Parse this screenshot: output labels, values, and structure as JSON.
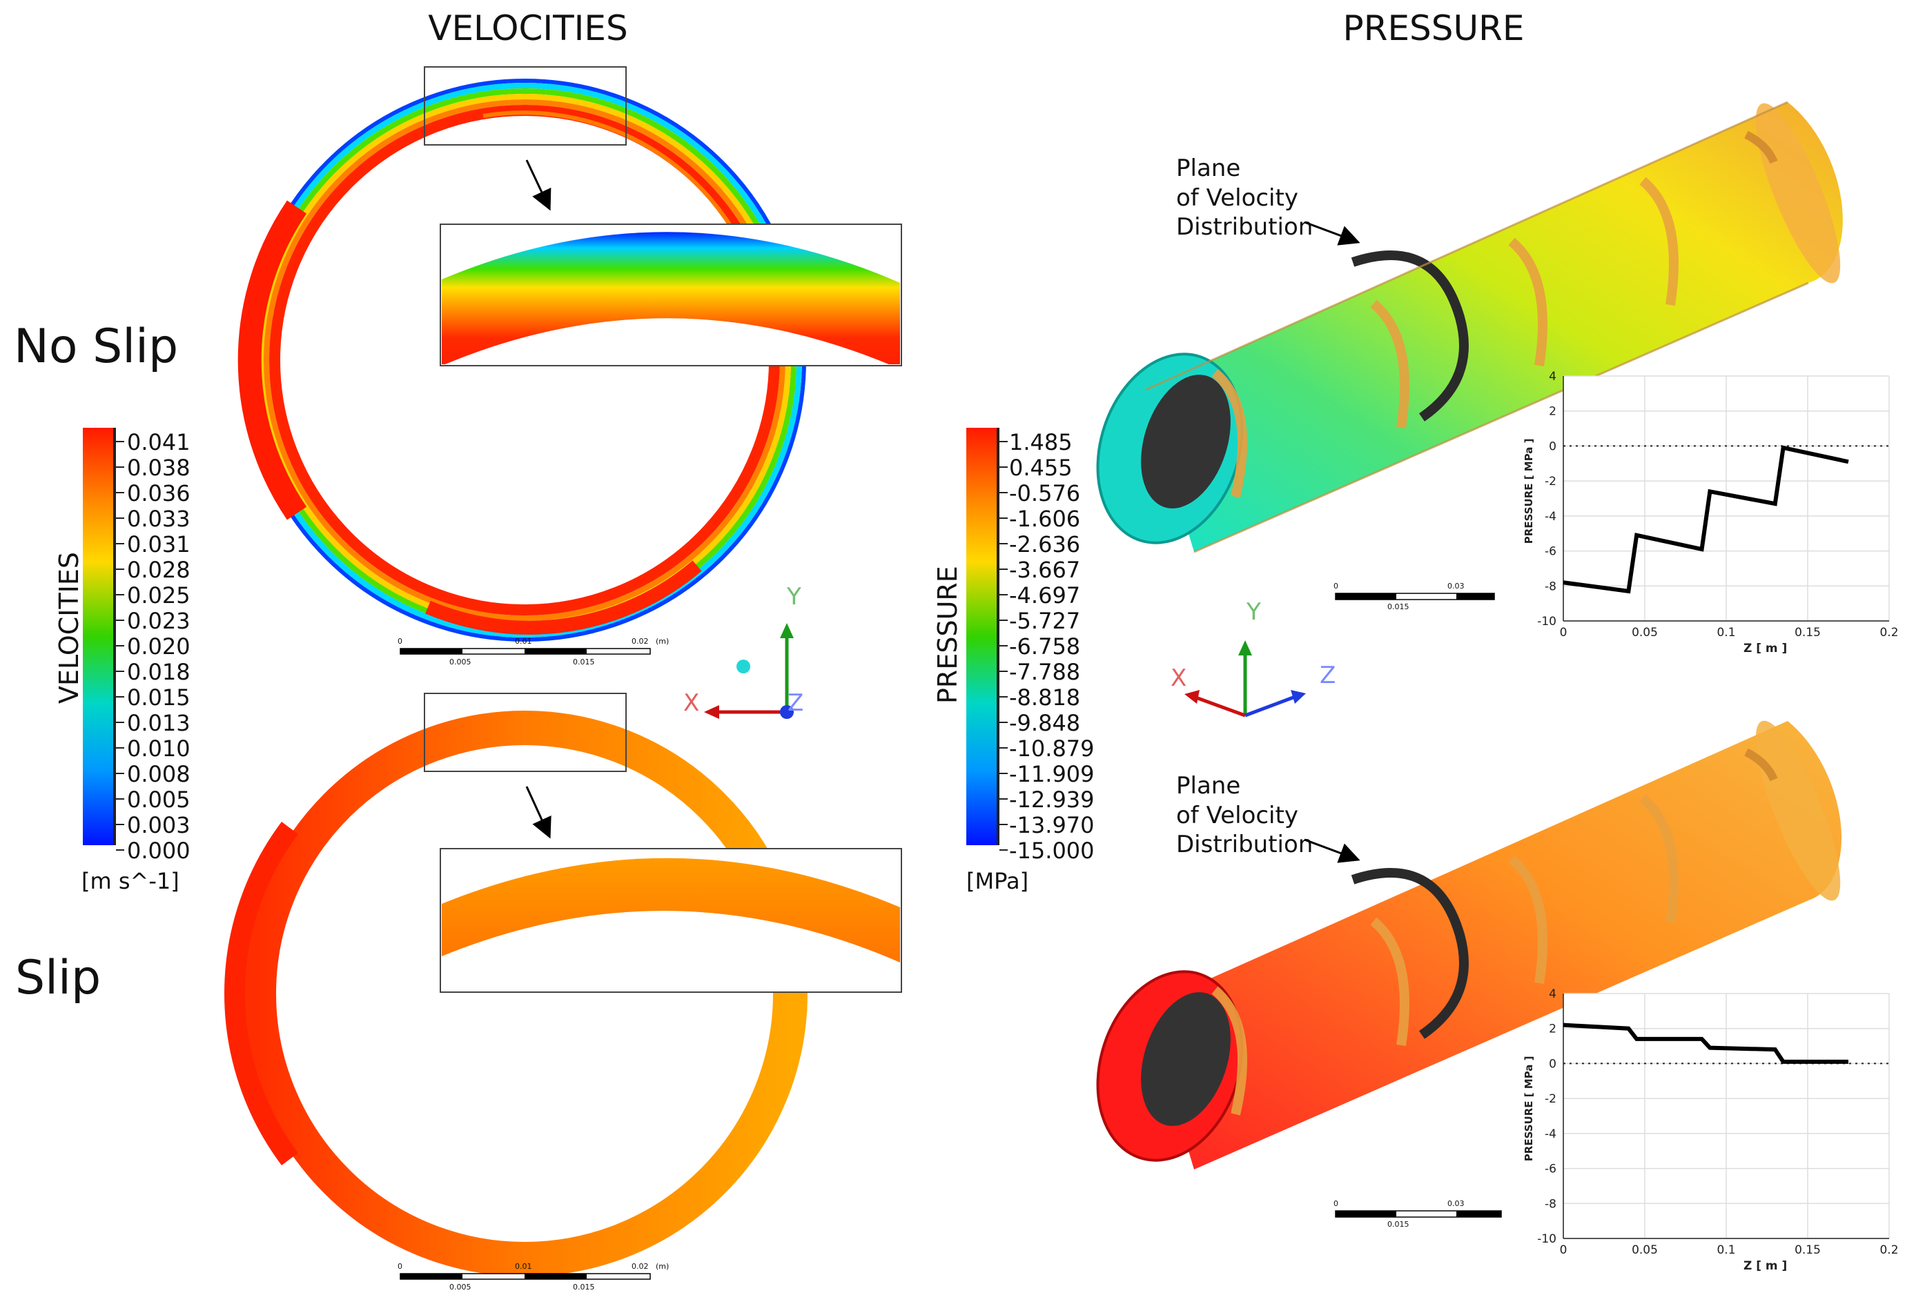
{
  "headers": {
    "velocities": "VELOCITIES",
    "pressure": "PRESSURE"
  },
  "rows": {
    "no_slip": "No Slip",
    "slip": "Slip"
  },
  "velocity_legend": {
    "title": "VELOCITIES",
    "unit": "[m s^-1]",
    "ticks": [
      "0.041",
      "0.038",
      "0.036",
      "0.033",
      "0.031",
      "0.028",
      "0.025",
      "0.023",
      "0.020",
      "0.018",
      "0.015",
      "0.013",
      "0.010",
      "0.008",
      "0.005",
      "0.003",
      "0.000"
    ]
  },
  "pressure_legend": {
    "title": "PRESSURE",
    "unit": "[MPa]",
    "ticks": [
      "1.485",
      "0.455",
      "-0.576",
      "-1.606",
      "-2.636",
      "-3.667",
      "-4.697",
      "-5.727",
      "-6.758",
      "-7.788",
      "-8.818",
      "-9.848",
      "-10.879",
      "-11.909",
      "-12.939",
      "-13.970",
      "-15.000"
    ]
  },
  "scale_velocity": {
    "top": [
      "0",
      "0.01",
      "0.02"
    ],
    "unit": "(m)",
    "bottom": [
      "0.005",
      "0.015"
    ]
  },
  "scale_pressure": {
    "top": [
      "0",
      "0.03"
    ],
    "bottom": [
      "0.015"
    ]
  },
  "axes": {
    "x": "X",
    "y": "Y",
    "z": "Z"
  },
  "annotation": {
    "line1": "Plane",
    "line2": "of Velocity",
    "line3": "Distribution"
  },
  "chart_data": [
    {
      "type": "line",
      "xlabel": "Z [ m ]",
      "ylabel": "PRESSURE [ MPa ]",
      "xlim": [
        0,
        0.2
      ],
      "ylim": [
        -10,
        4
      ],
      "xticks": [
        "0",
        "0.05",
        "0.1",
        "0.15",
        "0.2"
      ],
      "yticks": [
        "4",
        "2",
        "0",
        "-2",
        "-4",
        "-6",
        "-8",
        "-10"
      ],
      "grid": true,
      "x": [
        0,
        0.04,
        0.045,
        0.085,
        0.09,
        0.13,
        0.135,
        0.175
      ],
      "y": [
        -7.8,
        -8.3,
        -5.1,
        -5.9,
        -2.6,
        -3.3,
        -0.1,
        -0.9
      ]
    },
    {
      "type": "line",
      "xlabel": "Z [ m ]",
      "ylabel": "PRESSURE [ MPa ]",
      "xlim": [
        0,
        0.2
      ],
      "ylim": [
        -10,
        4
      ],
      "xticks": [
        "0",
        "0.05",
        "0.1",
        "0.15",
        "0.2"
      ],
      "yticks": [
        "4",
        "2",
        "0",
        "-2",
        "-4",
        "-6",
        "-8",
        "-10"
      ],
      "grid": true,
      "x": [
        0,
        0.04,
        0.045,
        0.085,
        0.09,
        0.13,
        0.135,
        0.175
      ],
      "y": [
        2.2,
        2.0,
        1.4,
        1.4,
        0.9,
        0.8,
        0.1,
        0.1
      ]
    }
  ]
}
